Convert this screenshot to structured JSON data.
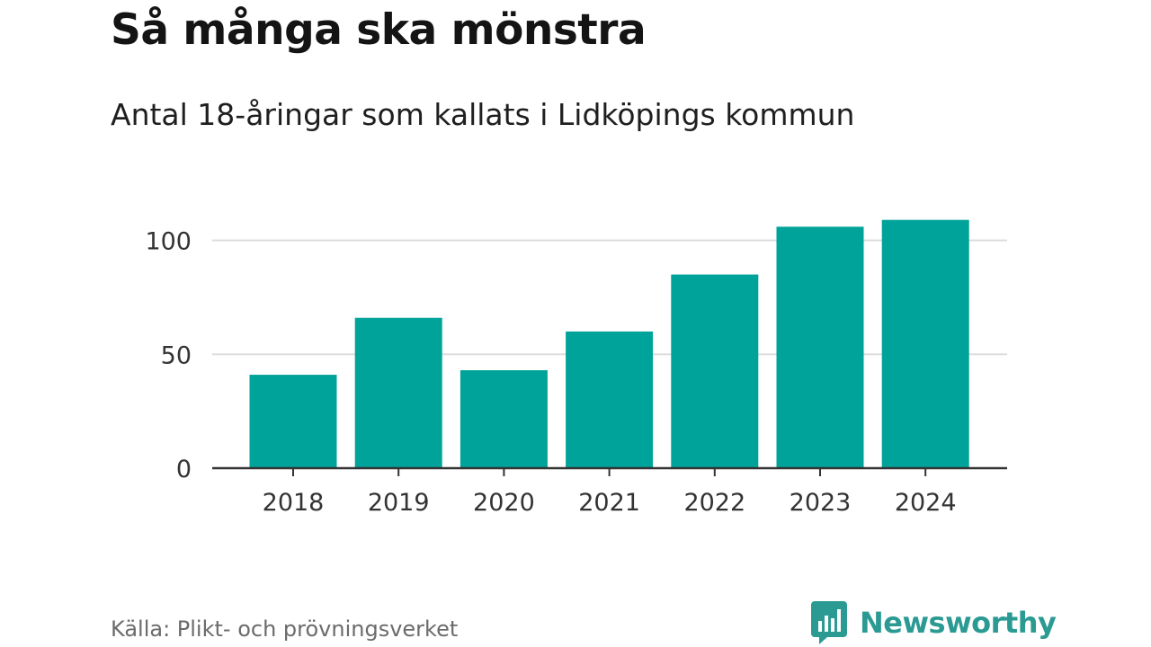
{
  "header": {
    "title": "Så många ska mönstra",
    "subtitle": "Antal 18-åringar som kallats i Lidköpings kommun"
  },
  "footer": {
    "source": "Källa: Plikt- och prövningsverket",
    "brand": "Newsworthy",
    "brand_icon": "bar-chart-speech-bubble-icon"
  },
  "colors": {
    "bar": "#00a39a",
    "grid": "#dddddd",
    "axis": "#333333",
    "brand": "#2a9a93"
  },
  "chart_data": {
    "type": "bar",
    "title": "Så många ska mönstra",
    "subtitle": "Antal 18-åringar som kallats i Lidköpings kommun",
    "xlabel": "",
    "ylabel": "",
    "categories": [
      "2018",
      "2019",
      "2020",
      "2021",
      "2022",
      "2023",
      "2024"
    ],
    "values": [
      41,
      66,
      43,
      60,
      85,
      106,
      109
    ],
    "ylim": [
      0,
      120
    ],
    "yticks": [
      0,
      50,
      100
    ],
    "grid": true,
    "legend": "none"
  }
}
